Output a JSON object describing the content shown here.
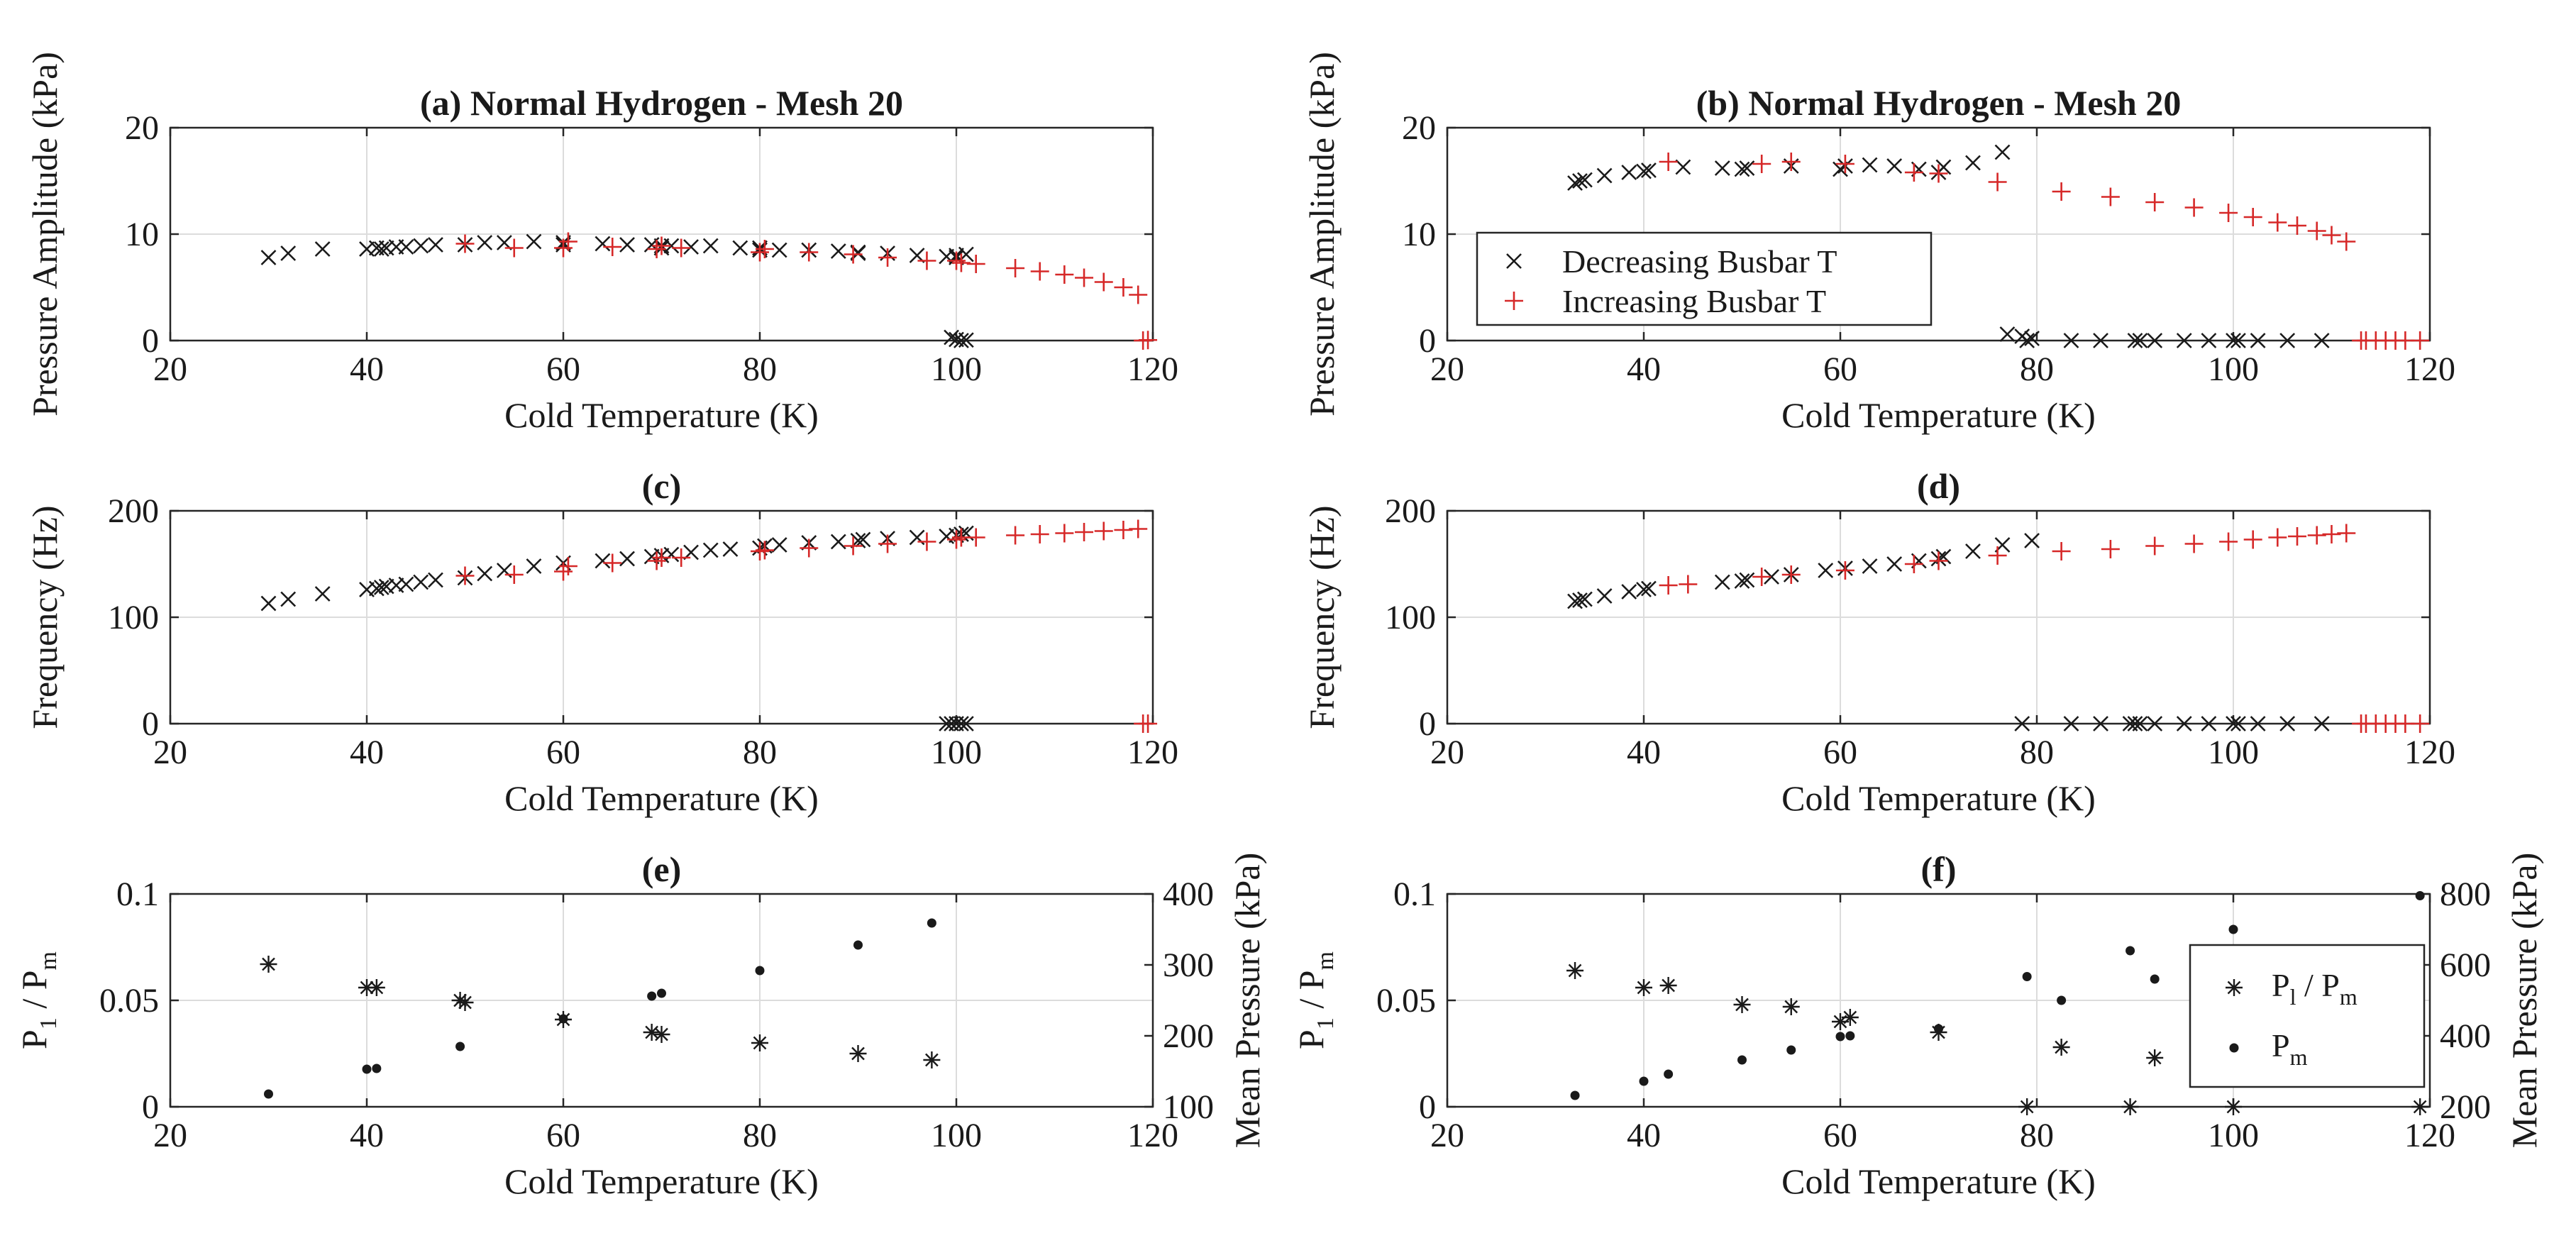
{
  "colors": {
    "decreasing": "#1a1a1a",
    "increasing": "#d62828",
    "pressure": "#1a1a1a"
  },
  "chart_data": [
    {
      "id": "a",
      "type": "scatter",
      "title": "(a) Normal Hydrogen - Mesh 20",
      "xlabel": "Cold Temperature (K)",
      "ylabel": "Pressure Amplitude (kPa)",
      "xlim": [
        20,
        120
      ],
      "ylim": [
        0,
        20
      ],
      "xticks": [
        "20",
        "40",
        "60",
        "80",
        "100",
        "120"
      ],
      "yticks": [
        "0",
        "10",
        "20"
      ],
      "grid": true,
      "series": [
        {
          "name": "Decreasing Busbar T",
          "marker": "x",
          "color": "decreasing",
          "x": [
            30,
            32,
            35.5,
            40,
            41,
            41.5,
            42,
            43,
            44,
            45.5,
            47,
            50,
            52,
            54,
            57,
            60,
            60,
            64,
            66.5,
            69,
            70,
            70,
            71,
            73,
            75,
            78,
            80,
            80,
            82,
            85,
            88,
            90,
            90,
            93,
            96,
            99,
            100,
            100,
            101,
            99.5,
            100,
            100.5,
            101
          ],
          "y": [
            7.8,
            8.2,
            8.6,
            8.6,
            8.7,
            8.6,
            8.7,
            8.8,
            8.8,
            8.9,
            9.0,
            9.0,
            9.2,
            9.2,
            9.3,
            9.2,
            9.0,
            9.1,
            9.0,
            9.0,
            8.9,
            8.7,
            8.9,
            8.8,
            8.9,
            8.7,
            8.7,
            8.5,
            8.5,
            8.5,
            8.4,
            8.2,
            8.3,
            8.2,
            8.0,
            7.9,
            7.8,
            8.0,
            8.1,
            0.3,
            0.1,
            0.0,
            0.05
          ]
        },
        {
          "name": "Increasing Busbar T",
          "marker": "+",
          "color": "increasing",
          "x": [
            50,
            55,
            60,
            60.5,
            65,
            69.5,
            70,
            72,
            80,
            80.5,
            85,
            89.5,
            93,
            97,
            100,
            100.5,
            102,
            106,
            108.5,
            111,
            113,
            115,
            117,
            118.5,
            119,
            119.5
          ],
          "y": [
            9.1,
            8.7,
            8.7,
            9.3,
            8.8,
            8.6,
            8.9,
            8.7,
            8.3,
            8.6,
            8.3,
            8.1,
            7.8,
            7.5,
            7.5,
            7.3,
            7.2,
            6.8,
            6.5,
            6.2,
            5.9,
            5.5,
            5.0,
            4.3,
            0.0,
            0.05
          ]
        }
      ]
    },
    {
      "id": "b",
      "type": "scatter",
      "title": "(b) Normal Hydrogen - Mesh 20",
      "xlabel": "Cold Temperature (K)",
      "ylabel": "Pressure Amplitude (kPa)",
      "xlim": [
        20,
        120
      ],
      "ylim": [
        0,
        20
      ],
      "xticks": [
        "20",
        "40",
        "60",
        "80",
        "100",
        "120"
      ],
      "yticks": [
        "0",
        "10",
        "20"
      ],
      "grid": true,
      "legend": "upper-left",
      "series": [
        {
          "name": "Decreasing Busbar T",
          "marker": "x",
          "color": "decreasing",
          "x": [
            33,
            33.5,
            34,
            36,
            38.5,
            40,
            40.5,
            44,
            48,
            50,
            50.5,
            55,
            60,
            60.5,
            63,
            65.5,
            68,
            70,
            70.5,
            73.5,
            76.5,
            77,
            78.5,
            79,
            79.5,
            83.5,
            86.5,
            90,
            90.5,
            92,
            95,
            97.5,
            100,
            100.5,
            102.5,
            105.5,
            109
          ],
          "y": [
            14.8,
            15.0,
            15.1,
            15.5,
            15.8,
            15.9,
            16.0,
            16.3,
            16.2,
            16.1,
            16.2,
            16.4,
            16.1,
            16.4,
            16.5,
            16.4,
            16.1,
            15.8,
            16.3,
            16.7,
            17.7,
            0.6,
            0.4,
            0.0,
            0.2,
            0.0,
            0.0,
            0.0,
            0.0,
            0.0,
            0.0,
            0.0,
            0.0,
            0.0,
            0.0,
            0.0,
            0.0
          ]
        },
        {
          "name": "Increasing Busbar T",
          "marker": "+",
          "color": "increasing",
          "x": [
            42.5,
            52,
            55,
            60.5,
            67.5,
            70,
            76,
            82.5,
            87.5,
            92,
            96,
            99.5,
            102,
            104.5,
            106.5,
            108.5,
            110,
            111.5,
            113,
            113.5,
            114.5,
            115.5,
            116.5,
            117.5,
            119
          ],
          "y": [
            16.8,
            16.6,
            16.8,
            16.6,
            15.8,
            15.7,
            14.9,
            14.0,
            13.5,
            13.0,
            12.5,
            12.0,
            11.6,
            11.1,
            10.8,
            10.3,
            9.9,
            9.3,
            0.0,
            0.0,
            0.0,
            0.0,
            0.0,
            0.0,
            0.0
          ]
        }
      ]
    },
    {
      "id": "c",
      "type": "scatter",
      "title": "(c)",
      "xlabel": "Cold Temperature (K)",
      "ylabel": "Frequency (Hz)",
      "xlim": [
        20,
        120
      ],
      "ylim": [
        0,
        200
      ],
      "xticks": [
        "20",
        "40",
        "60",
        "80",
        "100",
        "120"
      ],
      "yticks": [
        "0",
        "100",
        "200"
      ],
      "grid": true,
      "series": [
        {
          "name": "Decreasing Busbar T",
          "marker": "x",
          "color": "decreasing",
          "x": [
            30,
            32,
            35.5,
            40,
            41,
            41.5,
            42,
            43,
            44,
            45.5,
            47,
            50,
            52,
            54,
            57,
            60,
            64,
            66.5,
            69,
            70,
            71,
            73,
            75,
            77,
            80,
            80.5,
            82,
            85,
            88,
            90,
            90.5,
            93,
            96,
            99,
            100,
            100.5,
            101,
            99,
            99.5,
            100,
            100.5,
            101
          ],
          "y": [
            113,
            117,
            122,
            126,
            127,
            128,
            129,
            130,
            131,
            133,
            135,
            137,
            141,
            144,
            148,
            151,
            153,
            155,
            157,
            158,
            159,
            161,
            163,
            164,
            165,
            167,
            168,
            170,
            171,
            172,
            173,
            174,
            175,
            176,
            177,
            178,
            179,
            0,
            0,
            0,
            0,
            0
          ]
        },
        {
          "name": "Increasing Busbar T",
          "marker": "+",
          "color": "increasing",
          "x": [
            50,
            55,
            60,
            60.5,
            65,
            69.5,
            70,
            72,
            80,
            80.5,
            85,
            89.5,
            93,
            97,
            100,
            100.5,
            102,
            106,
            108.5,
            111,
            113,
            115,
            117,
            118.5,
            119,
            119.5
          ],
          "y": [
            139,
            140,
            143,
            148,
            151,
            153,
            156,
            156,
            162,
            163,
            165,
            167,
            169,
            171,
            173,
            175,
            175,
            177,
            178,
            179,
            180,
            181,
            182,
            183,
            0,
            0
          ]
        }
      ]
    },
    {
      "id": "d",
      "type": "scatter",
      "title": "(d)",
      "xlabel": "Cold Temperature (K)",
      "ylabel": "Frequency (Hz)",
      "xlim": [
        20,
        120
      ],
      "ylim": [
        0,
        200
      ],
      "xticks": [
        "20",
        "40",
        "60",
        "80",
        "100",
        "120"
      ],
      "yticks": [
        "0",
        "100",
        "200"
      ],
      "grid": true,
      "series": [
        {
          "name": "Decreasing Busbar T",
          "marker": "x",
          "color": "decreasing",
          "x": [
            33,
            33.5,
            34,
            36,
            38.5,
            40,
            40.5,
            48,
            50,
            50.5,
            53,
            55,
            58.5,
            60.5,
            63,
            65.5,
            68,
            70,
            70.5,
            73.5,
            76.5,
            79.5,
            78.5,
            83.5,
            86.5,
            89.5,
            90,
            90.5,
            92,
            95,
            97.5,
            100,
            100.5,
            102.5,
            105.5,
            109
          ],
          "y": [
            115,
            116,
            117,
            120,
            124,
            126,
            127,
            133,
            134,
            135,
            138,
            140,
            144,
            146,
            148,
            150,
            153,
            155,
            157,
            162,
            168,
            172,
            0,
            0,
            0,
            0,
            0,
            0,
            0,
            0,
            0,
            0,
            0,
            0,
            0,
            0
          ]
        },
        {
          "name": "Increasing Busbar T",
          "marker": "+",
          "color": "increasing",
          "x": [
            42.5,
            44.5,
            52,
            55,
            60.5,
            67.5,
            70,
            76,
            82.5,
            87.5,
            92,
            96,
            99.5,
            102,
            104.5,
            106.5,
            108.5,
            110,
            111.5,
            113,
            113.5,
            114.5,
            115.5,
            116.5,
            117.5,
            119
          ],
          "y": [
            130,
            131,
            138,
            140,
            144,
            150,
            153,
            158,
            162,
            164,
            167,
            169,
            171,
            173,
            175,
            176,
            177,
            178,
            179,
            0,
            0,
            0,
            0,
            0,
            0,
            0
          ]
        }
      ]
    },
    {
      "id": "e",
      "type": "scatter",
      "title": "(e)",
      "xlabel": "Cold Temperature (K)",
      "ylabel": "P1 / Pm",
      "y2label": "Mean Pressure (kPa)",
      "xlim": [
        20,
        120
      ],
      "ylim": [
        0,
        0.1
      ],
      "y2lim": [
        100,
        400
      ],
      "xticks": [
        "20",
        "40",
        "60",
        "80",
        "100",
        "120"
      ],
      "yticks": [
        "0",
        "0.05",
        "0.1"
      ],
      "y2ticks": [
        "100",
        "200",
        "300",
        "400"
      ],
      "grid": true,
      "series": [
        {
          "name": "P1 / Pm",
          "marker": "*",
          "color": "pressure",
          "axis": "left",
          "x": [
            30,
            40,
            41,
            49.5,
            50,
            60,
            69,
            70,
            80,
            90,
            97.5
          ],
          "y": [
            0.067,
            0.056,
            0.056,
            0.05,
            0.049,
            0.041,
            0.035,
            0.034,
            0.03,
            0.025,
            0.022
          ]
        },
        {
          "name": "Pm",
          "marker": ".",
          "color": "pressure",
          "axis": "right",
          "x": [
            30,
            40,
            41,
            49.5,
            60,
            69,
            70,
            80,
            90,
            97.5
          ],
          "y": [
            118,
            153,
            154,
            185,
            224,
            256,
            260,
            292,
            328,
            359
          ]
        }
      ]
    },
    {
      "id": "f",
      "type": "scatter",
      "title": "(f)",
      "xlabel": "Cold Temperature (K)",
      "ylabel": "P1 / Pm",
      "y2label": "Mean Pressure (kPa)",
      "xlim": [
        20,
        120
      ],
      "ylim": [
        0,
        0.1
      ],
      "y2lim": [
        200,
        800
      ],
      "xticks": [
        "20",
        "40",
        "60",
        "80",
        "100",
        "120"
      ],
      "yticks": [
        "0",
        "0.05",
        "0.1"
      ],
      "y2ticks": [
        "200",
        "400",
        "600",
        "800"
      ],
      "grid": true,
      "legend": "right",
      "series": [
        {
          "name": "P1 / Pm",
          "marker": "*",
          "color": "pressure",
          "axis": "left",
          "x": [
            33,
            40,
            42.5,
            50,
            55,
            60,
            61,
            70,
            79,
            82.5,
            89.5,
            92,
            100,
            119
          ],
          "y": [
            0.064,
            0.056,
            0.057,
            0.048,
            0.047,
            0.04,
            0.042,
            0.035,
            0.0,
            0.028,
            0.0,
            0.023,
            0.0,
            0.0
          ]
        },
        {
          "name": "Pm",
          "marker": ".",
          "color": "pressure",
          "axis": "right",
          "x": [
            33,
            40,
            42.5,
            50,
            55,
            60,
            61,
            70,
            79,
            82.5,
            89.5,
            92,
            100,
            119
          ],
          "y": [
            232,
            272,
            292,
            332,
            360,
            398,
            400,
            420,
            567,
            500,
            640,
            560,
            700,
            795
          ]
        }
      ]
    }
  ],
  "legend_panel_b": {
    "decreasing": "Decreasing Busbar T",
    "increasing": "Increasing Busbar T"
  },
  "legend_panel_f": {
    "ratio": "P / P",
    "ratio_sub1": "l",
    "ratio_sub2": "m",
    "mean": "P",
    "mean_sub": "m"
  }
}
